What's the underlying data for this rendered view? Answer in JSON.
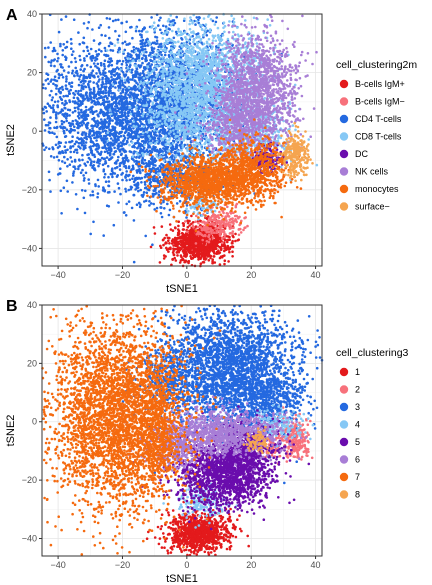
{
  "panels": [
    {
      "letter": "A",
      "legend_title": "cell_clustering2m",
      "chart_data": {
        "type": "scatter",
        "xlabel": "tSNE1",
        "ylabel": "tSNE2",
        "xlim": [
          -45,
          42
        ],
        "ylim": [
          -46,
          40
        ],
        "xticks": [
          -40,
          -20,
          0,
          20,
          40
        ],
        "yticks": [
          -40,
          -20,
          0,
          20,
          40
        ],
        "grid": true,
        "legend_position": "right",
        "series": [
          {
            "name": "B-cells IgM+",
            "color": "#e31a1c",
            "clusters": [
              [
                4,
                -38,
                5,
                3.5,
                900
              ]
            ]
          },
          {
            "name": "B-cells IgM−",
            "color": "#f7717b",
            "clusters": [
              [
                12,
                -31,
                3.5,
                2.5,
                160
              ],
              [
                6,
                -34,
                3,
                2,
                70
              ]
            ]
          },
          {
            "name": "CD4 T-cells",
            "color": "#2469e0",
            "clusters": [
              [
                -17,
                7,
                16,
                14,
                3200
              ],
              [
                -3,
                12,
                8,
                11,
                800
              ],
              [
                -5,
                -16,
                8,
                6,
                400
              ]
            ]
          },
          {
            "name": "CD8 T-cells",
            "color": "#86c8f5",
            "clusters": [
              [
                5,
                14,
                10,
                12,
                2300
              ],
              [
                21,
                -2,
                7,
                6,
                350
              ],
              [
                4,
                -25,
                3,
                2.5,
                60
              ]
            ]
          },
          {
            "name": "DC",
            "color": "#6a0dad",
            "clusters": [
              [
                25,
                -10,
                2.5,
                2.5,
                180
              ]
            ]
          },
          {
            "name": "NK cells",
            "color": "#a87ed6",
            "clusters": [
              [
                22,
                14,
                6.5,
                10,
                1400
              ],
              [
                15,
                2,
                6,
                5,
                400
              ]
            ]
          },
          {
            "name": "monocytes",
            "color": "#f56a0f",
            "clusters": [
              [
                7,
                -17,
                8,
                4.5,
                1200
              ],
              [
                20,
                -13,
                6,
                5.5,
                700
              ]
            ]
          },
          {
            "name": "surface−",
            "color": "#f5a550",
            "clusters": [
              [
                34,
                -8,
                2.2,
                4,
                260
              ]
            ]
          }
        ]
      }
    },
    {
      "letter": "B",
      "legend_title": "cell_clustering3",
      "chart_data": {
        "type": "scatter",
        "xlabel": "tSNE1",
        "ylabel": "tSNE2",
        "xlim": [
          -45,
          42
        ],
        "ylim": [
          -46,
          40
        ],
        "xticks": [
          -40,
          -20,
          0,
          20,
          40
        ],
        "yticks": [
          -40,
          -20,
          0,
          20,
          40
        ],
        "grid": true,
        "legend_position": "right",
        "series": [
          {
            "name": "1",
            "color": "#e31a1c",
            "clusters": [
              [
                4,
                -38,
                5,
                3.5,
                900
              ]
            ]
          },
          {
            "name": "2",
            "color": "#f7717b",
            "clusters": [
              [
                33,
                -6,
                2.5,
                4,
                260
              ],
              [
                25,
                -9,
                2,
                2,
                60
              ]
            ]
          },
          {
            "name": "3",
            "color": "#2469e0",
            "clusters": [
              [
                13,
                18,
                11,
                11,
                2600
              ],
              [
                25,
                8,
                6,
                5,
                400
              ],
              [
                -5,
                15,
                5,
                6,
                300
              ]
            ]
          },
          {
            "name": "4",
            "color": "#86c8f5",
            "clusters": [
              [
                5,
                -27,
                4,
                3,
                180
              ],
              [
                28,
                -1,
                4,
                3,
                150
              ]
            ]
          },
          {
            "name": "5",
            "color": "#6a0dad",
            "clusters": [
              [
                12,
                -18,
                8,
                6,
                1500
              ],
              [
                18,
                -8,
                5,
                4,
                400
              ]
            ]
          },
          {
            "name": "6",
            "color": "#a87ed6",
            "clusters": [
              [
                10,
                -4,
                10,
                4,
                1000
              ],
              [
                -4,
                -10,
                4,
                4,
                200
              ]
            ]
          },
          {
            "name": "7",
            "color": "#f56a0f",
            "clusters": [
              [
                -22,
                2,
                11,
                17,
                3400
              ],
              [
                -9,
                -2,
                3,
                12,
                500
              ]
            ]
          },
          {
            "name": "8",
            "color": "#f5a550",
            "clusters": [
              [
                22,
                -7,
                2,
                2,
                70
              ]
            ]
          }
        ]
      }
    }
  ]
}
